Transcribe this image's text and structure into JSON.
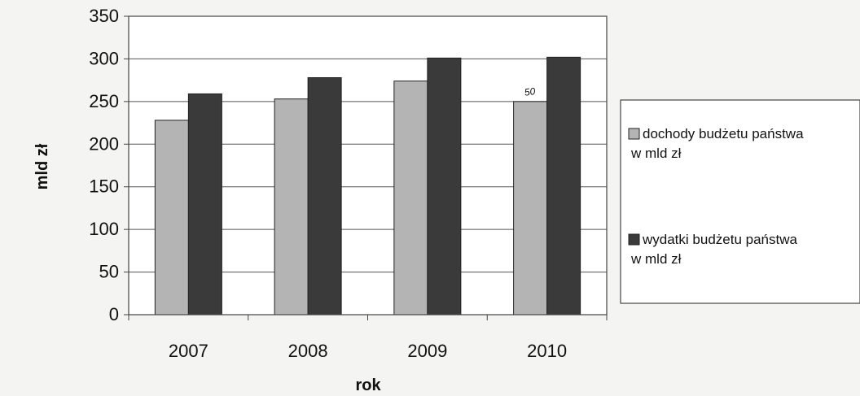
{
  "chart_data": {
    "type": "bar",
    "title": "",
    "xlabel": "rok",
    "ylabel": "mld zł",
    "categories": [
      "2007",
      "2008",
      "2009",
      "2010"
    ],
    "ylim": [
      0,
      350
    ],
    "yticks": [
      "0",
      "50",
      "100",
      "150",
      "200",
      "250",
      "300",
      "350"
    ],
    "grid": true,
    "legend_position": "right",
    "series": [
      {
        "name": "dochody budżetu państwa w mld zł",
        "legend_lines": [
          "dochody budżetu państwa",
          "w mld zł"
        ],
        "values": [
          228,
          253,
          274,
          250
        ],
        "color": "#b4b4b4"
      },
      {
        "name": "wydatki budżetu państwa w mld zł",
        "legend_lines": [
          "wydatki budżetu państwa",
          "w mld zł"
        ],
        "values": [
          259,
          278,
          301,
          302
        ],
        "color": "#3a3a3a"
      }
    ],
    "annotations": [
      {
        "text": "50",
        "category": "2010",
        "series": 0,
        "style": "handwritten"
      }
    ]
  }
}
